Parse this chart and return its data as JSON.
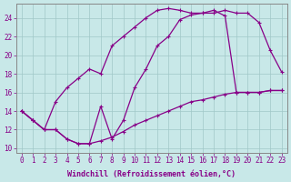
{
  "xlabel": "Windchill (Refroidissement éolien,°C)",
  "bg_color": "#c8e8e8",
  "line_color": "#880088",
  "markersize": 2.5,
  "linewidth": 0.9,
  "xlim": [
    -0.5,
    23.5
  ],
  "ylim": [
    9.5,
    25.5
  ],
  "xticks": [
    0,
    1,
    2,
    3,
    4,
    5,
    6,
    7,
    8,
    9,
    10,
    11,
    12,
    13,
    14,
    15,
    16,
    17,
    18,
    19,
    20,
    21,
    22,
    23
  ],
  "yticks": [
    10,
    12,
    14,
    16,
    18,
    20,
    22,
    24
  ],
  "grid_color": "#a0c8c8",
  "line1_x": [
    0,
    1,
    2,
    3,
    4,
    5,
    6,
    7,
    8,
    9,
    10,
    11,
    12,
    13,
    14,
    15,
    16,
    17,
    18,
    19,
    20,
    21,
    22,
    23
  ],
  "line1_y": [
    14.0,
    13.0,
    12.0,
    15.0,
    16.5,
    17.5,
    18.5,
    18.0,
    21.0,
    22.0,
    23.0,
    24.0,
    24.8,
    25.0,
    24.8,
    24.5,
    24.5,
    24.8,
    24.2,
    16.0,
    16.0,
    16.0,
    16.2,
    16.2
  ],
  "line2_x": [
    0,
    1,
    2,
    3,
    4,
    5,
    6,
    7,
    8,
    9,
    10,
    11,
    12,
    13,
    14,
    15,
    16,
    17,
    18,
    19,
    20,
    21,
    22,
    23
  ],
  "line2_y": [
    14.0,
    13.0,
    12.0,
    12.0,
    11.0,
    10.5,
    10.5,
    14.5,
    11.0,
    13.0,
    16.5,
    18.5,
    21.0,
    22.0,
    23.8,
    24.3,
    24.5,
    24.5,
    24.8,
    24.5,
    24.5,
    23.5,
    20.5,
    18.2
  ],
  "line3_x": [
    0,
    1,
    2,
    3,
    4,
    5,
    6,
    7,
    8,
    9,
    10,
    11,
    12,
    13,
    14,
    15,
    16,
    17,
    18,
    19,
    20,
    21,
    22,
    23
  ],
  "line3_y": [
    14.0,
    13.0,
    12.0,
    12.0,
    11.0,
    10.5,
    10.5,
    10.8,
    11.2,
    11.8,
    12.5,
    13.0,
    13.5,
    14.0,
    14.5,
    15.0,
    15.2,
    15.5,
    15.8,
    16.0,
    16.0,
    16.0,
    16.2,
    16.2
  ],
  "tick_fontsize": 5.5,
  "xlabel_fontsize": 6.0
}
